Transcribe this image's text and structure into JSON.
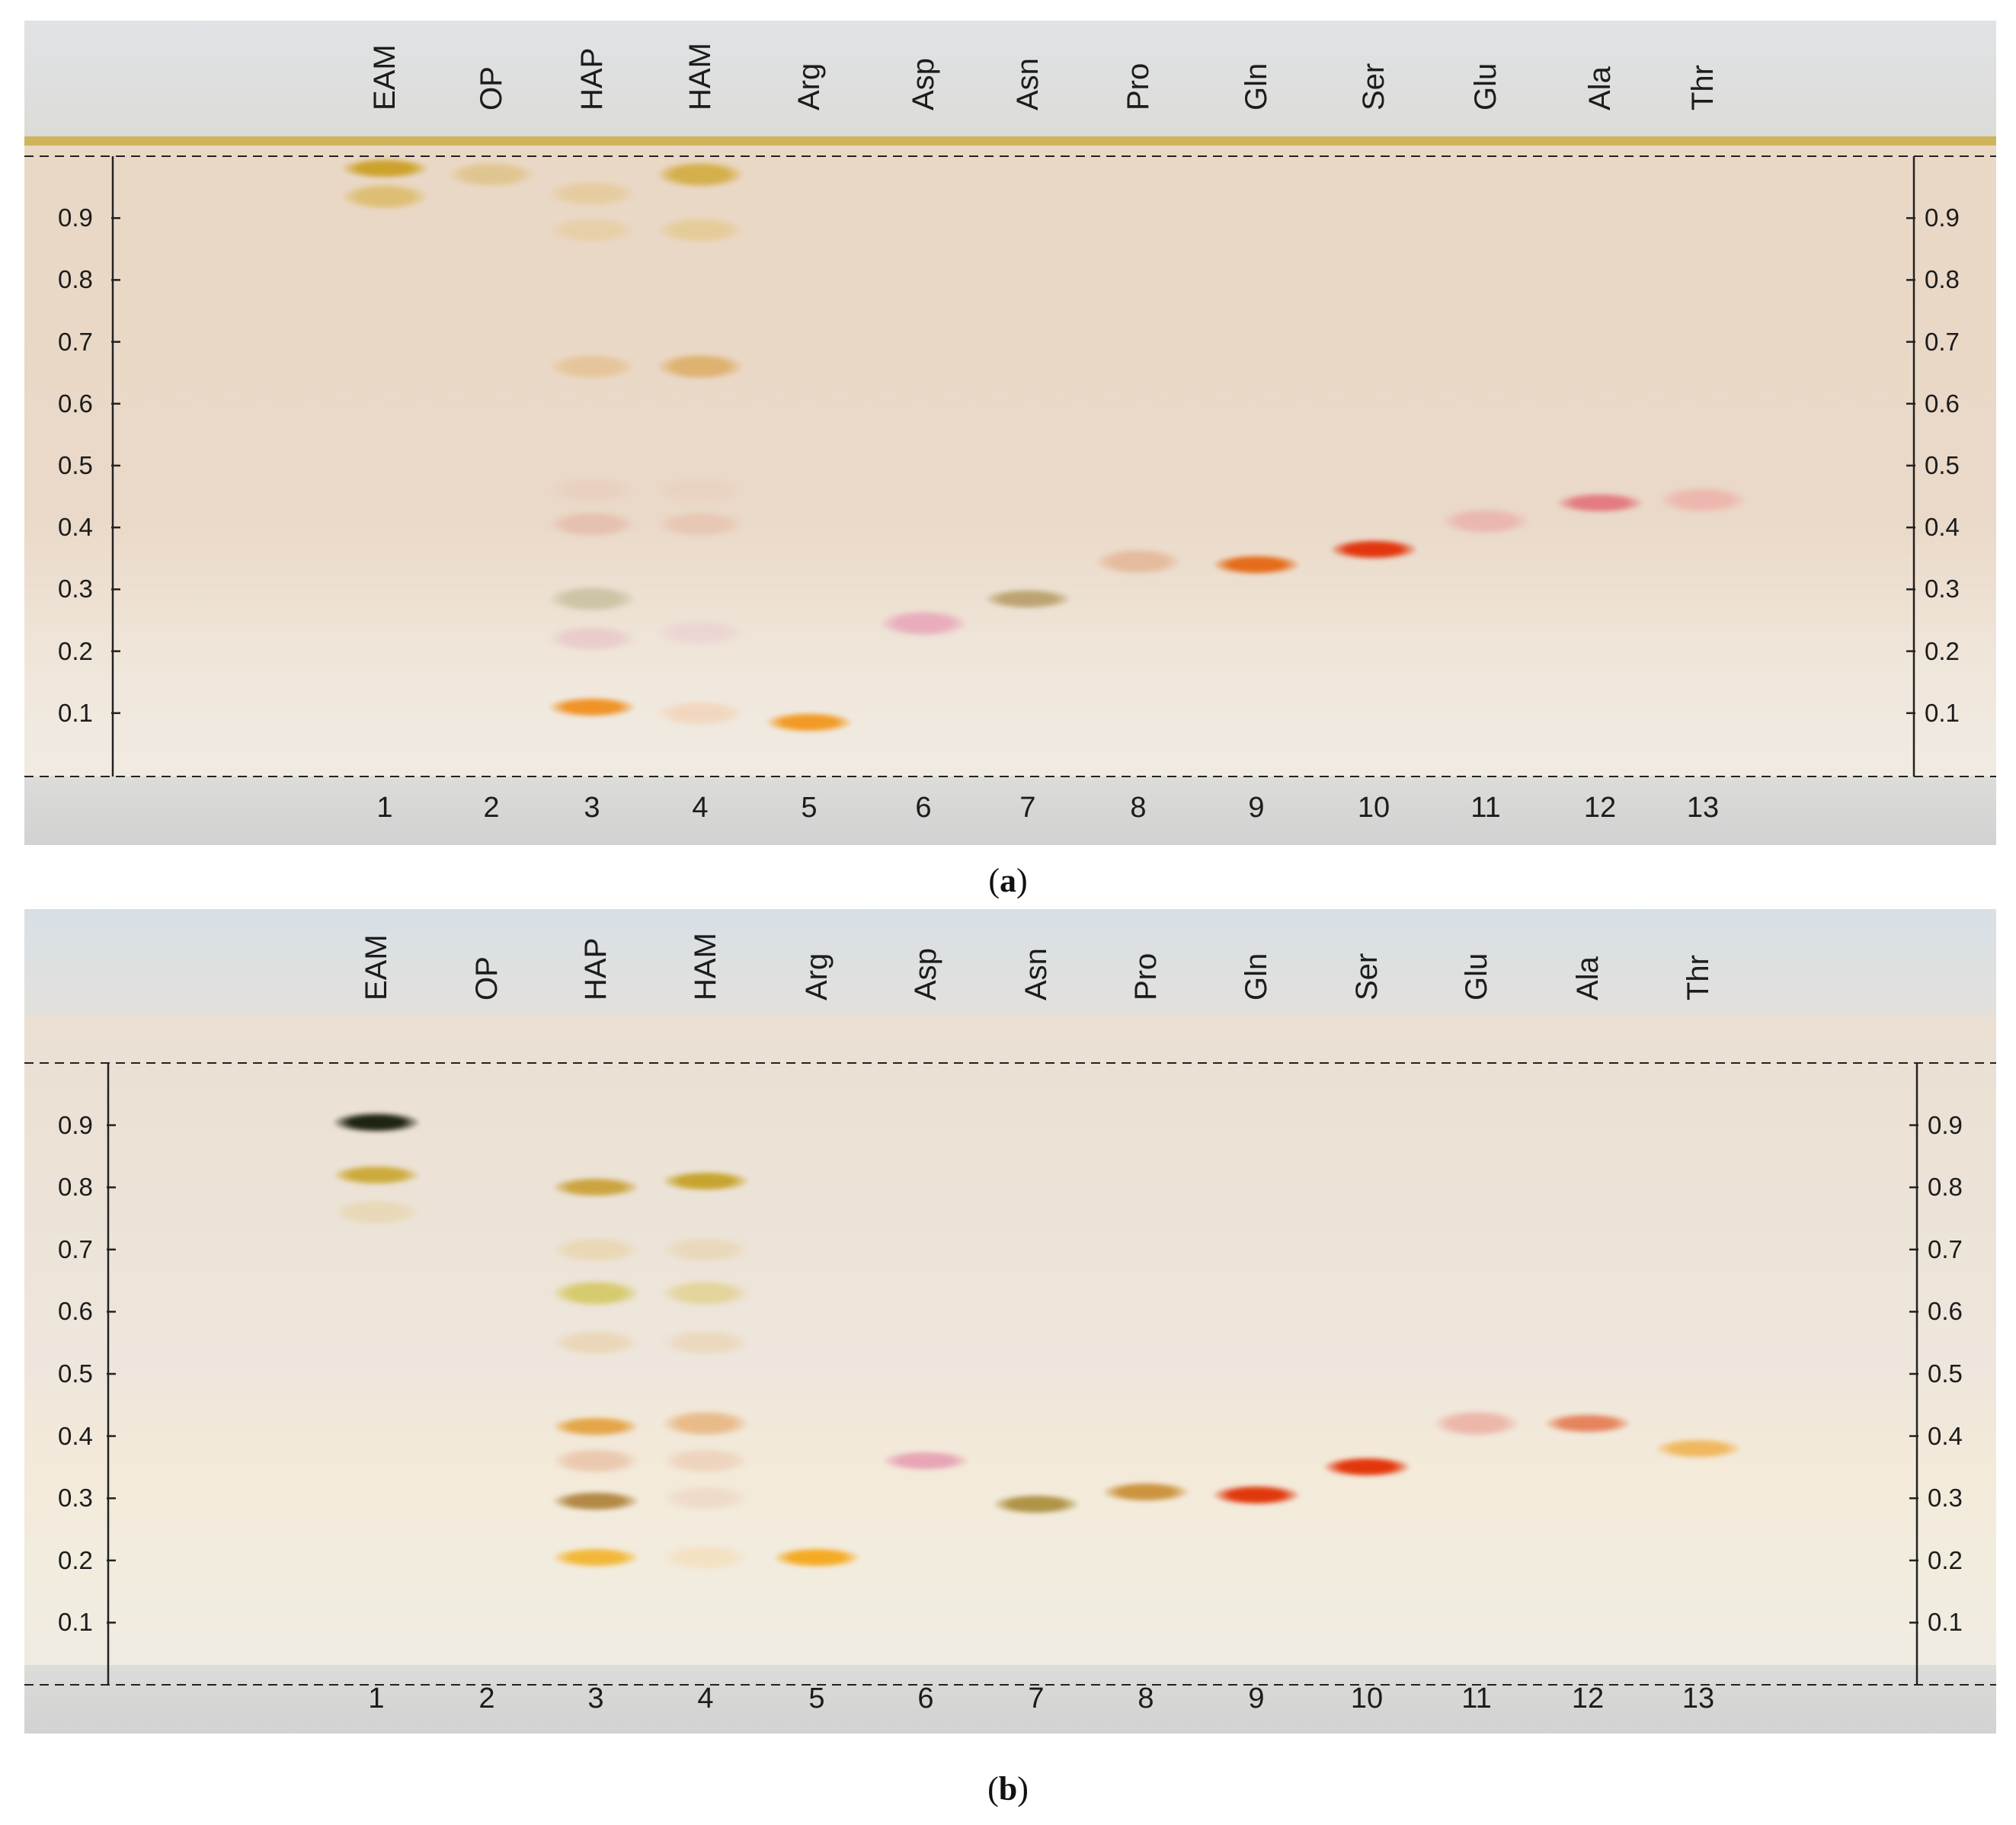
{
  "plates": [
    {
      "id": "a",
      "caption_open": "(",
      "caption_letter": "a",
      "caption_close": ")",
      "lane_labels": [
        "EAM",
        "OP",
        "HAP",
        "HAM",
        "Arg",
        "Asp",
        "Asn",
        "Pro",
        "Gln",
        "Ser",
        "Glu",
        "Ala",
        "Thr"
      ],
      "lane_numbers": [
        "1",
        "2",
        "3",
        "4",
        "5",
        "6",
        "7",
        "8",
        "9",
        "10",
        "11",
        "12",
        "13"
      ],
      "rf_ticks": [
        "0.9",
        "0.8",
        "0.7",
        "0.6",
        "0.5",
        "0.4",
        "0.3",
        "0.2",
        "0.1"
      ],
      "bands": [
        {
          "lane": 1,
          "rf": 0.98,
          "color": "#c99d1c",
          "intensity": 0.9
        },
        {
          "lane": 1,
          "rf": 0.935,
          "color": "#d5ad3f",
          "intensity": 0.6
        },
        {
          "lane": 2,
          "rf": 0.97,
          "color": "#d6b45c",
          "intensity": 0.5
        },
        {
          "lane": 3,
          "rf": 0.94,
          "color": "#e2c07a",
          "intensity": 0.5
        },
        {
          "lane": 3,
          "rf": 0.88,
          "color": "#e4c584",
          "intensity": 0.45
        },
        {
          "lane": 3,
          "rf": 0.66,
          "color": "#e3b880",
          "intensity": 0.6
        },
        {
          "lane": 3,
          "rf": 0.46,
          "color": "#e8c4b4",
          "intensity": 0.4
        },
        {
          "lane": 3,
          "rf": 0.405,
          "color": "#e2a89a",
          "intensity": 0.5
        },
        {
          "lane": 3,
          "rf": 0.285,
          "color": "#b9b28a",
          "intensity": 0.6
        },
        {
          "lane": 3,
          "rf": 0.22,
          "color": "#e3b8c0",
          "intensity": 0.5
        },
        {
          "lane": 3,
          "rf": 0.11,
          "color": "#f08a14",
          "intensity": 0.9
        },
        {
          "lane": 4,
          "rf": 0.97,
          "color": "#cfa52c",
          "intensity": 0.8
        },
        {
          "lane": 4,
          "rf": 0.88,
          "color": "#e0c06e",
          "intensity": 0.5
        },
        {
          "lane": 4,
          "rf": 0.66,
          "color": "#d9a24c",
          "intensity": 0.7
        },
        {
          "lane": 4,
          "rf": 0.46,
          "color": "#e9c6b2",
          "intensity": 0.35
        },
        {
          "lane": 4,
          "rf": 0.405,
          "color": "#e5b19c",
          "intensity": 0.45
        },
        {
          "lane": 4,
          "rf": 0.23,
          "color": "#e7c2cc",
          "intensity": 0.4
        },
        {
          "lane": 4,
          "rf": 0.1,
          "color": "#f3c7a2",
          "intensity": 0.5
        },
        {
          "lane": 5,
          "rf": 0.085,
          "color": "#f39212",
          "intensity": 0.9
        },
        {
          "lane": 6,
          "rf": 0.245,
          "color": "#e8a0b6",
          "intensity": 0.8
        },
        {
          "lane": 7,
          "rf": 0.285,
          "color": "#b39a62",
          "intensity": 0.85
        },
        {
          "lane": 8,
          "rf": 0.345,
          "color": "#e2b08e",
          "intensity": 0.75
        },
        {
          "lane": 9,
          "rf": 0.34,
          "color": "#e56612",
          "intensity": 0.95
        },
        {
          "lane": 10,
          "rf": 0.365,
          "color": "#e2360e",
          "intensity": 1.0
        },
        {
          "lane": 11,
          "rf": 0.41,
          "color": "#eaaaa6",
          "intensity": 0.7
        },
        {
          "lane": 12,
          "rf": 0.44,
          "color": "#e3727a",
          "intensity": 0.9
        },
        {
          "lane": 13,
          "rf": 0.445,
          "color": "#eeaaa4",
          "intensity": 0.7
        }
      ]
    },
    {
      "id": "b",
      "caption_open": "(",
      "caption_letter": "b",
      "caption_close": ")",
      "lane_labels": [
        "EAM",
        "OP",
        "HAP",
        "HAM",
        "Arg",
        "Asp",
        "Asn",
        "Pro",
        "Gln",
        "Ser",
        "Glu",
        "Ala",
        "Thr"
      ],
      "lane_numbers": [
        "1",
        "2",
        "3",
        "4",
        "5",
        "6",
        "7",
        "8",
        "9",
        "10",
        "11",
        "12",
        "13"
      ],
      "rf_ticks": [
        "0.9",
        "0.8",
        "0.7",
        "0.6",
        "0.5",
        "0.4",
        "0.3",
        "0.2",
        "0.1"
      ],
      "bands": [
        {
          "lane": 1,
          "rf": 0.905,
          "color": "#1e2410",
          "intensity": 1.0
        },
        {
          "lane": 1,
          "rf": 0.82,
          "color": "#c7a221",
          "intensity": 0.85
        },
        {
          "lane": 1,
          "rf": 0.76,
          "color": "#e3c98a",
          "intensity": 0.4
        },
        {
          "lane": 3,
          "rf": 0.8,
          "color": "#c69a27",
          "intensity": 0.85
        },
        {
          "lane": 3,
          "rf": 0.7,
          "color": "#e6c98c",
          "intensity": 0.45
        },
        {
          "lane": 3,
          "rf": 0.63,
          "color": "#cfc24a",
          "intensity": 0.75
        },
        {
          "lane": 3,
          "rf": 0.55,
          "color": "#e7c692",
          "intensity": 0.45
        },
        {
          "lane": 3,
          "rf": 0.415,
          "color": "#e39a30",
          "intensity": 0.85
        },
        {
          "lane": 3,
          "rf": 0.36,
          "color": "#e6b495",
          "intensity": 0.6
        },
        {
          "lane": 3,
          "rf": 0.295,
          "color": "#a8782c",
          "intensity": 0.85
        },
        {
          "lane": 3,
          "rf": 0.205,
          "color": "#f2b328",
          "intensity": 0.9
        },
        {
          "lane": 4,
          "rf": 0.81,
          "color": "#c49e1e",
          "intensity": 0.9
        },
        {
          "lane": 4,
          "rf": 0.7,
          "color": "#e4c78e",
          "intensity": 0.4
        },
        {
          "lane": 4,
          "rf": 0.63,
          "color": "#dcc86a",
          "intensity": 0.55
        },
        {
          "lane": 4,
          "rf": 0.55,
          "color": "#e7c694",
          "intensity": 0.4
        },
        {
          "lane": 4,
          "rf": 0.42,
          "color": "#e6a868",
          "intensity": 0.7
        },
        {
          "lane": 4,
          "rf": 0.36,
          "color": "#e9c0a6",
          "intensity": 0.5
        },
        {
          "lane": 4,
          "rf": 0.3,
          "color": "#e8c7b0",
          "intensity": 0.4
        },
        {
          "lane": 4,
          "rf": 0.205,
          "color": "#f5d7aa",
          "intensity": 0.5
        },
        {
          "lane": 5,
          "rf": 0.205,
          "color": "#f5a81a",
          "intensity": 0.95
        },
        {
          "lane": 6,
          "rf": 0.36,
          "color": "#e59ab0",
          "intensity": 0.85
        },
        {
          "lane": 7,
          "rf": 0.29,
          "color": "#a88a38",
          "intensity": 0.9
        },
        {
          "lane": 8,
          "rf": 0.31,
          "color": "#c98a2e",
          "intensity": 0.9
        },
        {
          "lane": 9,
          "rf": 0.305,
          "color": "#e0380c",
          "intensity": 1.0
        },
        {
          "lane": 10,
          "rf": 0.35,
          "color": "#e3360a",
          "intensity": 1.0
        },
        {
          "lane": 11,
          "rf": 0.42,
          "color": "#eaa79a",
          "intensity": 0.75
        },
        {
          "lane": 12,
          "rf": 0.42,
          "color": "#e47a50",
          "intensity": 0.9
        },
        {
          "lane": 13,
          "rf": 0.38,
          "color": "#f0b04a",
          "intensity": 0.85
        }
      ]
    }
  ]
}
